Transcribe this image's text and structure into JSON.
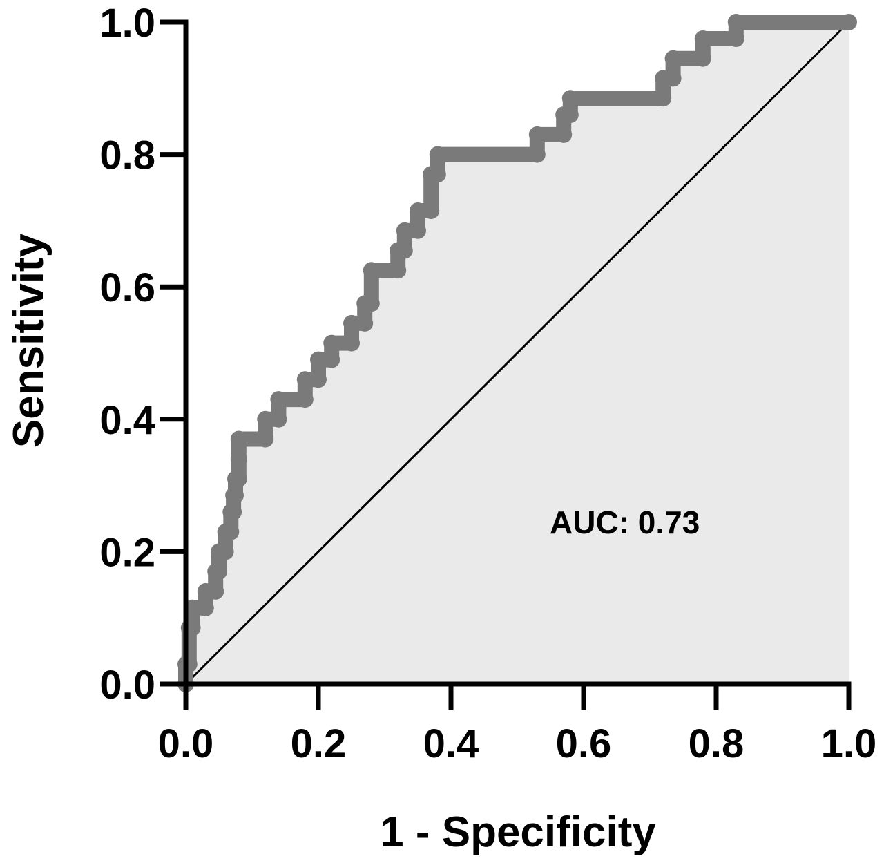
{
  "chart_data": {
    "type": "line",
    "title": "",
    "xlabel": "1 - Specificity",
    "ylabel": "Sensitivity",
    "xlim": [
      0,
      1
    ],
    "ylim": [
      0,
      1
    ],
    "x_ticks": [
      "0.0",
      "0.2",
      "0.4",
      "0.6",
      "0.8",
      "1.0"
    ],
    "y_ticks": [
      "0.0",
      "0.2",
      "0.4",
      "0.6",
      "0.8",
      "1.0"
    ],
    "grid": false,
    "annotation": "AUC: 0.73",
    "reference_line": {
      "x": [
        0,
        1
      ],
      "y": [
        0,
        1
      ]
    },
    "shaded_area_color": "#eaeaea",
    "series": [
      {
        "color": "#7a7a7a",
        "x": [
          0.0,
          0.0,
          0.005,
          0.005,
          0.01,
          0.01,
          0.03,
          0.03,
          0.045,
          0.045,
          0.05,
          0.05,
          0.06,
          0.06,
          0.068,
          0.068,
          0.072,
          0.072,
          0.075,
          0.075,
          0.08,
          0.08,
          0.08,
          0.12,
          0.12,
          0.14,
          0.14,
          0.18,
          0.18,
          0.2,
          0.2,
          0.22,
          0.22,
          0.25,
          0.25,
          0.27,
          0.27,
          0.28,
          0.28,
          0.32,
          0.32,
          0.33,
          0.33,
          0.35,
          0.35,
          0.37,
          0.37,
          0.38,
          0.38,
          0.53,
          0.53,
          0.57,
          0.57,
          0.58,
          0.58,
          0.72,
          0.72,
          0.735,
          0.735,
          0.78,
          0.78,
          0.83,
          0.83,
          1.0
        ],
        "y": [
          0.0,
          0.03,
          0.03,
          0.085,
          0.085,
          0.115,
          0.115,
          0.14,
          0.14,
          0.17,
          0.17,
          0.2,
          0.2,
          0.23,
          0.23,
          0.26,
          0.26,
          0.285,
          0.285,
          0.31,
          0.31,
          0.34,
          0.37,
          0.37,
          0.4,
          0.4,
          0.43,
          0.43,
          0.46,
          0.46,
          0.49,
          0.49,
          0.515,
          0.515,
          0.545,
          0.545,
          0.575,
          0.575,
          0.625,
          0.625,
          0.655,
          0.655,
          0.685,
          0.685,
          0.715,
          0.715,
          0.77,
          0.77,
          0.8,
          0.8,
          0.83,
          0.83,
          0.86,
          0.86,
          0.885,
          0.885,
          0.915,
          0.915,
          0.945,
          0.945,
          0.975,
          0.975,
          1.0,
          1.0
        ]
      }
    ]
  }
}
